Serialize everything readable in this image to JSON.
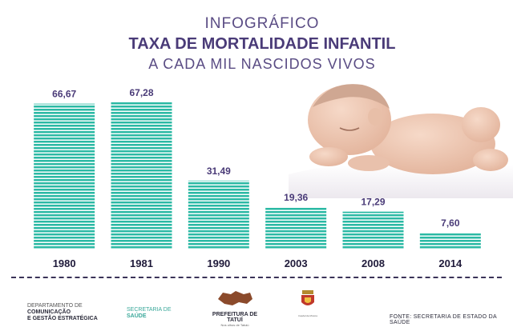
{
  "header": {
    "line1": "INFOGRÁFICO",
    "line2": "TAXA DE MORTALIDADE INFANTIL",
    "line3": "A CADA MIL NASCIDOS VIVOS"
  },
  "chart_data": {
    "type": "bar",
    "categories": [
      "1980",
      "1981",
      "1990",
      "2003",
      "2008",
      "2014"
    ],
    "values": [
      66.67,
      67.28,
      31.49,
      19.36,
      17.29,
      7.6
    ],
    "value_labels": [
      "66,67",
      "67,28",
      "31,49",
      "19,36",
      "17,29",
      "7,60"
    ],
    "ylim": [
      0,
      67.28
    ],
    "bar_color": "#2bb9a4",
    "stripe_color": "#ffffff",
    "grid": false
  },
  "footer": {
    "org1": {
      "line1": "DEPARTAMENTO DE",
      "line2": "COMUNICAÇÃO",
      "line3": "E GESTÃO ESTRATÉGICA"
    },
    "org2": {
      "line1": "SECRETARIA DE",
      "line2": "SAÚDE"
    },
    "logo3": {
      "name": "PREFEITURA DE TATUÍ",
      "sub": "Nos olhos de Tatuiú"
    },
    "logo4": {
      "caption": "Capital da Música"
    },
    "source": "FONTE: SECRETARIA DE ESTADO DA SAÚDE"
  },
  "colors": {
    "title": "#4a3b78",
    "bar": "#2bb9a4",
    "text_dark": "#1f1a3a",
    "accent_green": "#3aa89a",
    "logo_brown": "#8b4a2b"
  }
}
